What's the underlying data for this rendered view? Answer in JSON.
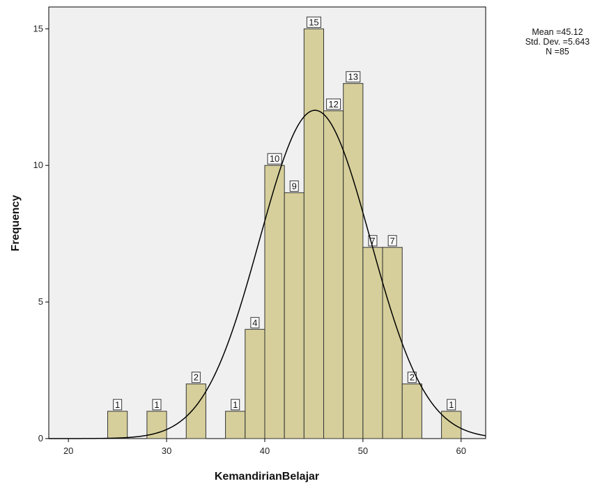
{
  "chart_data": {
    "type": "histogram",
    "xlabel": "KemandirianBelajar",
    "ylabel": "Frequency",
    "xlim": [
      18,
      62.5
    ],
    "ylim": [
      0,
      15.8
    ],
    "x_ticks": [
      20,
      30,
      40,
      50,
      60
    ],
    "y_ticks": [
      0,
      5,
      10,
      15
    ],
    "bin_width": 2,
    "bins": [
      {
        "start": 24,
        "end": 26,
        "count": 1
      },
      {
        "start": 28,
        "end": 30,
        "count": 1
      },
      {
        "start": 32,
        "end": 34,
        "count": 2
      },
      {
        "start": 36,
        "end": 38,
        "count": 1
      },
      {
        "start": 38,
        "end": 40,
        "count": 4
      },
      {
        "start": 40,
        "end": 42,
        "count": 10
      },
      {
        "start": 42,
        "end": 44,
        "count": 9
      },
      {
        "start": 44,
        "end": 46,
        "count": 15
      },
      {
        "start": 46,
        "end": 48,
        "count": 12
      },
      {
        "start": 48,
        "end": 50,
        "count": 13
      },
      {
        "start": 50,
        "end": 52,
        "count": 7
      },
      {
        "start": 52,
        "end": 54,
        "count": 7
      },
      {
        "start": 54,
        "end": 56,
        "count": 2
      },
      {
        "start": 58,
        "end": 60,
        "count": 1
      }
    ],
    "normal_curve": {
      "mean": 45.12,
      "std": 5.643,
      "n": 85
    },
    "stats_text": [
      "Mean =45.12",
      "Std. Dev. =5.643",
      "N =85"
    ],
    "grid": false,
    "colors": {
      "bar_fill": "#d6cf9b",
      "bar_stroke": "#333333",
      "plot_background": "#f0f0f0",
      "curve": "#000000"
    }
  }
}
